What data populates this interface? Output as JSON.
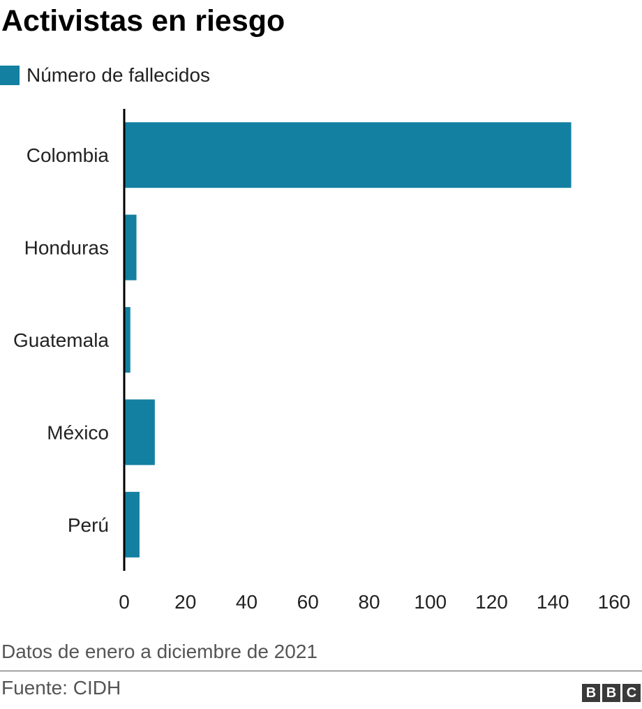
{
  "title": "Activistas en riesgo",
  "note": "Datos de enero a diciembre de 2021",
  "source": "Fuente: CIDH",
  "logo": {
    "letters": [
      "B",
      "B",
      "C"
    ],
    "label": "BBC"
  },
  "colors": {
    "bar": "#1380A1",
    "axis": "#000000",
    "text": "#222222"
  },
  "chart_data": {
    "type": "bar",
    "orientation": "horizontal",
    "categories": [
      "Colombia",
      "Honduras",
      "Guatemala",
      "México",
      "Perú"
    ],
    "series": [
      {
        "name": "Número de fallecidos",
        "values": [
          146,
          4,
          2,
          10,
          5
        ]
      }
    ],
    "xlim": [
      0,
      160
    ],
    "xticks": [
      0,
      20,
      40,
      60,
      80,
      100,
      120,
      140,
      160
    ],
    "grid": false,
    "legend_position": "top-left"
  }
}
